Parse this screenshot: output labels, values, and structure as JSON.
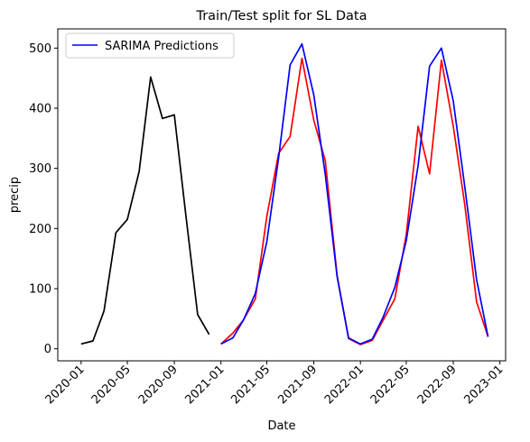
{
  "chart_data": {
    "type": "line",
    "title": "Train/Test split for SL Data",
    "xlabel": "Date",
    "ylabel": "precip",
    "xlim": [
      "2019-11-01",
      "2023-01-16"
    ],
    "ylim": [
      -20,
      532
    ],
    "xticks": [
      "2020-01-01",
      "2020-05-01",
      "2020-09-01",
      "2021-01-01",
      "2021-05-01",
      "2021-09-01",
      "2022-01-01",
      "2022-05-01",
      "2022-09-01",
      "2023-01-01"
    ],
    "xtick_labels": [
      "2020-01",
      "2020-05",
      "2020-09",
      "2021-01",
      "2021-05",
      "2021-09",
      "2022-01",
      "2022-05",
      "2022-09",
      "2023-01"
    ],
    "yticks": [
      0,
      100,
      200,
      300,
      400,
      500
    ],
    "grid": false,
    "legend": {
      "placement": "top-left",
      "entries": [
        "SARIMA Predictions"
      ]
    },
    "series": [
      {
        "color": "#000000",
        "x": [
          "2020-01-01",
          "2020-02-01",
          "2020-03-01",
          "2020-04-01",
          "2020-05-01",
          "2020-06-01",
          "2020-07-01",
          "2020-08-01",
          "2020-09-01",
          "2020-10-01",
          "2020-11-01",
          "2020-12-01"
        ],
        "y": [
          8,
          13,
          63,
          193,
          215,
          295,
          452,
          383,
          389,
          223,
          57,
          24
        ]
      },
      {
        "color": "#ff0000",
        "x": [
          "2021-01-01",
          "2021-02-01",
          "2021-03-01",
          "2021-04-01",
          "2021-05-01",
          "2021-06-01",
          "2021-07-01",
          "2021-08-01",
          "2021-09-01",
          "2021-10-01",
          "2021-11-01",
          "2021-12-01",
          "2022-01-01",
          "2022-02-01",
          "2022-03-01",
          "2022-04-01",
          "2022-05-01",
          "2022-06-01",
          "2022-07-01",
          "2022-08-01",
          "2022-09-01",
          "2022-10-01",
          "2022-11-01",
          "2022-12-01"
        ],
        "y": [
          8,
          26,
          48,
          83,
          220,
          325,
          353,
          483,
          380,
          313,
          122,
          17,
          7,
          14,
          47,
          83,
          190,
          370,
          291,
          480,
          370,
          240,
          78,
          20
        ]
      },
      {
        "name": "SARIMA Predictions",
        "color": "#0000ff",
        "x": [
          "2021-01-01",
          "2021-02-01",
          "2021-03-01",
          "2021-04-01",
          "2021-05-01",
          "2021-06-01",
          "2021-07-01",
          "2021-08-01",
          "2021-09-01",
          "2021-10-01",
          "2021-11-01",
          "2021-12-01",
          "2022-01-01",
          "2022-02-01",
          "2022-03-01",
          "2022-04-01",
          "2022-05-01",
          "2022-06-01",
          "2022-07-01",
          "2022-08-01",
          "2022-09-01",
          "2022-10-01",
          "2022-11-01",
          "2022-12-01"
        ],
        "y": [
          8,
          18,
          48,
          92,
          178,
          318,
          472,
          507,
          422,
          290,
          120,
          18,
          8,
          16,
          52,
          102,
          180,
          305,
          470,
          500,
          412,
          270,
          115,
          20
        ]
      }
    ]
  }
}
